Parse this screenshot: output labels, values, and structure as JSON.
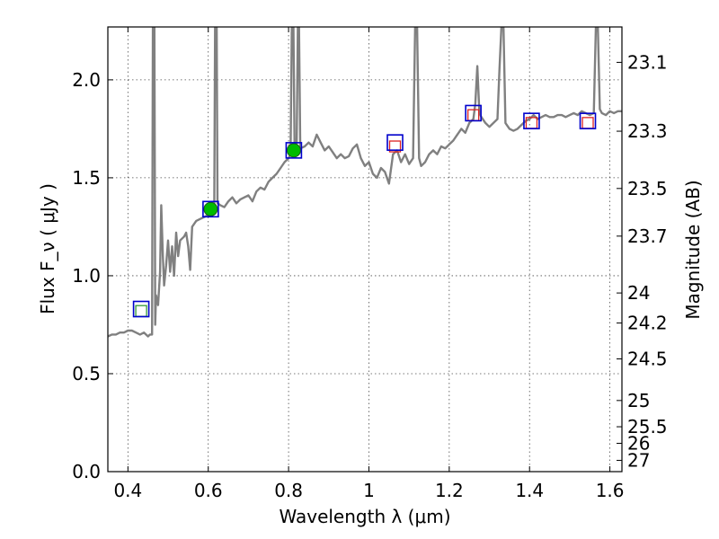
{
  "chart_data": {
    "type": "scatter",
    "xlabel": "Wavelength  λ (μm)",
    "ylabel": "Flux  F_ν  ( μJy )",
    "y2label": "Magnitude (AB)",
    "xlim": [
      0.35,
      1.63
    ],
    "ylim": [
      0.0,
      2.27
    ],
    "grid": true,
    "x_ticks": [
      {
        "value": 0.4,
        "label": "0.4"
      },
      {
        "value": 0.6,
        "label": "0.6"
      },
      {
        "value": 0.8,
        "label": "0.8"
      },
      {
        "value": 1.0,
        "label": "1"
      },
      {
        "value": 1.2,
        "label": "1.2"
      },
      {
        "value": 1.4,
        "label": "1.4"
      },
      {
        "value": 1.6,
        "label": "1.6"
      }
    ],
    "y_ticks": [
      {
        "value": 0.0,
        "label": "0.0"
      },
      {
        "value": 0.5,
        "label": "0.5"
      },
      {
        "value": 1.0,
        "label": "1.0"
      },
      {
        "value": 1.5,
        "label": "1.5"
      },
      {
        "value": 2.0,
        "label": "2.0"
      }
    ],
    "y2_ticks": [
      {
        "mag": 23.1,
        "label": "23.1"
      },
      {
        "mag": 23.3,
        "label": "23.3"
      },
      {
        "mag": 23.5,
        "label": "23.5"
      },
      {
        "mag": 23.7,
        "label": "23.7"
      },
      {
        "mag": 24.0,
        "label": "24"
      },
      {
        "mag": 24.2,
        "label": "24.2"
      },
      {
        "mag": 24.5,
        "label": "24.5"
      },
      {
        "mag": 25.0,
        "label": "25"
      },
      {
        "mag": 25.5,
        "label": "25.5"
      },
      {
        "mag": 26.0,
        "label": "26"
      },
      {
        "mag": 27.0,
        "label": "27"
      }
    ],
    "colors": {
      "spectrum": "#808080",
      "model_box": "#0000cc",
      "green_fill": "#00bb00",
      "green_box": "#339933",
      "red_box": "#dd2222"
    },
    "spectrum": [
      [
        0.35,
        0.69
      ],
      [
        0.36,
        0.7
      ],
      [
        0.37,
        0.7
      ],
      [
        0.38,
        0.71
      ],
      [
        0.39,
        0.71
      ],
      [
        0.4,
        0.72
      ],
      [
        0.41,
        0.72
      ],
      [
        0.42,
        0.71
      ],
      [
        0.43,
        0.7
      ],
      [
        0.44,
        0.71
      ],
      [
        0.45,
        0.69
      ],
      [
        0.455,
        0.7
      ],
      [
        0.46,
        0.7
      ],
      [
        0.462,
        2.27
      ],
      [
        0.466,
        2.27
      ],
      [
        0.468,
        0.75
      ],
      [
        0.47,
        0.9
      ],
      [
        0.475,
        0.85
      ],
      [
        0.48,
        1.02
      ],
      [
        0.483,
        1.36
      ],
      [
        0.487,
        1.1
      ],
      [
        0.49,
        0.95
      ],
      [
        0.495,
        1.05
      ],
      [
        0.5,
        1.18
      ],
      [
        0.505,
        1.02
      ],
      [
        0.51,
        1.15
      ],
      [
        0.515,
        1.0
      ],
      [
        0.52,
        1.22
      ],
      [
        0.525,
        1.1
      ],
      [
        0.53,
        1.18
      ],
      [
        0.54,
        1.2
      ],
      [
        0.545,
        1.22
      ],
      [
        0.55,
        1.15
      ],
      [
        0.555,
        1.03
      ],
      [
        0.56,
        1.25
      ],
      [
        0.57,
        1.28
      ],
      [
        0.58,
        1.29
      ],
      [
        0.59,
        1.3
      ],
      [
        0.6,
        1.31
      ],
      [
        0.61,
        1.33
      ],
      [
        0.615,
        1.35
      ],
      [
        0.617,
        2.27
      ],
      [
        0.621,
        2.27
      ],
      [
        0.623,
        1.37
      ],
      [
        0.63,
        1.36
      ],
      [
        0.64,
        1.35
      ],
      [
        0.65,
        1.38
      ],
      [
        0.66,
        1.4
      ],
      [
        0.67,
        1.37
      ],
      [
        0.68,
        1.39
      ],
      [
        0.69,
        1.4
      ],
      [
        0.7,
        1.41
      ],
      [
        0.71,
        1.38
      ],
      [
        0.72,
        1.43
      ],
      [
        0.73,
        1.45
      ],
      [
        0.74,
        1.44
      ],
      [
        0.75,
        1.48
      ],
      [
        0.76,
        1.5
      ],
      [
        0.77,
        1.52
      ],
      [
        0.78,
        1.55
      ],
      [
        0.79,
        1.58
      ],
      [
        0.8,
        1.6
      ],
      [
        0.805,
        1.62
      ],
      [
        0.808,
        2.27
      ],
      [
        0.812,
        2.27
      ],
      [
        0.815,
        1.64
      ],
      [
        0.82,
        1.63
      ],
      [
        0.823,
        2.27
      ],
      [
        0.826,
        2.27
      ],
      [
        0.829,
        1.65
      ],
      [
        0.84,
        1.66
      ],
      [
        0.85,
        1.68
      ],
      [
        0.86,
        1.66
      ],
      [
        0.87,
        1.72
      ],
      [
        0.88,
        1.68
      ],
      [
        0.89,
        1.64
      ],
      [
        0.9,
        1.66
      ],
      [
        0.91,
        1.63
      ],
      [
        0.92,
        1.6
      ],
      [
        0.93,
        1.62
      ],
      [
        0.94,
        1.6
      ],
      [
        0.95,
        1.61
      ],
      [
        0.96,
        1.65
      ],
      [
        0.97,
        1.67
      ],
      [
        0.98,
        1.6
      ],
      [
        0.99,
        1.56
      ],
      [
        1.0,
        1.58
      ],
      [
        1.01,
        1.52
      ],
      [
        1.02,
        1.5
      ],
      [
        1.03,
        1.55
      ],
      [
        1.04,
        1.53
      ],
      [
        1.05,
        1.47
      ],
      [
        1.06,
        1.62
      ],
      [
        1.07,
        1.64
      ],
      [
        1.08,
        1.58
      ],
      [
        1.09,
        1.62
      ],
      [
        1.1,
        1.57
      ],
      [
        1.11,
        1.6
      ],
      [
        1.115,
        2.27
      ],
      [
        1.12,
        2.27
      ],
      [
        1.125,
        1.6
      ],
      [
        1.13,
        1.56
      ],
      [
        1.14,
        1.58
      ],
      [
        1.15,
        1.62
      ],
      [
        1.16,
        1.64
      ],
      [
        1.17,
        1.62
      ],
      [
        1.18,
        1.66
      ],
      [
        1.19,
        1.65
      ],
      [
        1.2,
        1.67
      ],
      [
        1.21,
        1.69
      ],
      [
        1.22,
        1.72
      ],
      [
        1.23,
        1.75
      ],
      [
        1.24,
        1.73
      ],
      [
        1.25,
        1.78
      ],
      [
        1.26,
        1.8
      ],
      [
        1.265,
        1.88
      ],
      [
        1.27,
        2.07
      ],
      [
        1.275,
        1.83
      ],
      [
        1.28,
        1.81
      ],
      [
        1.29,
        1.78
      ],
      [
        1.3,
        1.76
      ],
      [
        1.31,
        1.78
      ],
      [
        1.32,
        1.8
      ],
      [
        1.325,
        2.05
      ],
      [
        1.33,
        2.27
      ],
      [
        1.335,
        2.27
      ],
      [
        1.34,
        1.78
      ],
      [
        1.35,
        1.75
      ],
      [
        1.36,
        1.74
      ],
      [
        1.37,
        1.75
      ],
      [
        1.38,
        1.77
      ],
      [
        1.39,
        1.79
      ],
      [
        1.4,
        1.8
      ],
      [
        1.41,
        1.82
      ],
      [
        1.42,
        1.8
      ],
      [
        1.43,
        1.81
      ],
      [
        1.44,
        1.82
      ],
      [
        1.45,
        1.81
      ],
      [
        1.46,
        1.81
      ],
      [
        1.47,
        1.82
      ],
      [
        1.48,
        1.82
      ],
      [
        1.49,
        1.81
      ],
      [
        1.5,
        1.82
      ],
      [
        1.51,
        1.83
      ],
      [
        1.52,
        1.82
      ],
      [
        1.53,
        1.84
      ],
      [
        1.54,
        1.83
      ],
      [
        1.55,
        1.82
      ],
      [
        1.56,
        1.83
      ],
      [
        1.565,
        2.27
      ],
      [
        1.57,
        2.27
      ],
      [
        1.575,
        1.85
      ],
      [
        1.58,
        1.83
      ],
      [
        1.59,
        1.82
      ],
      [
        1.6,
        1.84
      ],
      [
        1.61,
        1.83
      ],
      [
        1.62,
        1.84
      ],
      [
        1.63,
        1.84
      ]
    ],
    "model_points": [
      {
        "x": 0.433,
        "y": 0.83
      },
      {
        "x": 0.606,
        "y": 1.34
      },
      {
        "x": 0.813,
        "y": 1.64
      },
      {
        "x": 1.065,
        "y": 1.68
      },
      {
        "x": 1.26,
        "y": 1.83
      },
      {
        "x": 1.405,
        "y": 1.79
      },
      {
        "x": 1.545,
        "y": 1.79
      }
    ],
    "observed_points": [
      {
        "x": 0.433,
        "y": 0.82,
        "style": "green-square"
      },
      {
        "x": 0.606,
        "y": 1.34,
        "style": "green-circle"
      },
      {
        "x": 0.813,
        "y": 1.64,
        "style": "green-circle"
      },
      {
        "x": 1.065,
        "y": 1.66,
        "style": "red-square"
      },
      {
        "x": 1.26,
        "y": 1.82,
        "style": "red-square"
      },
      {
        "x": 1.405,
        "y": 1.78,
        "style": "red-square"
      },
      {
        "x": 1.545,
        "y": 1.78,
        "style": "red-square"
      }
    ]
  }
}
